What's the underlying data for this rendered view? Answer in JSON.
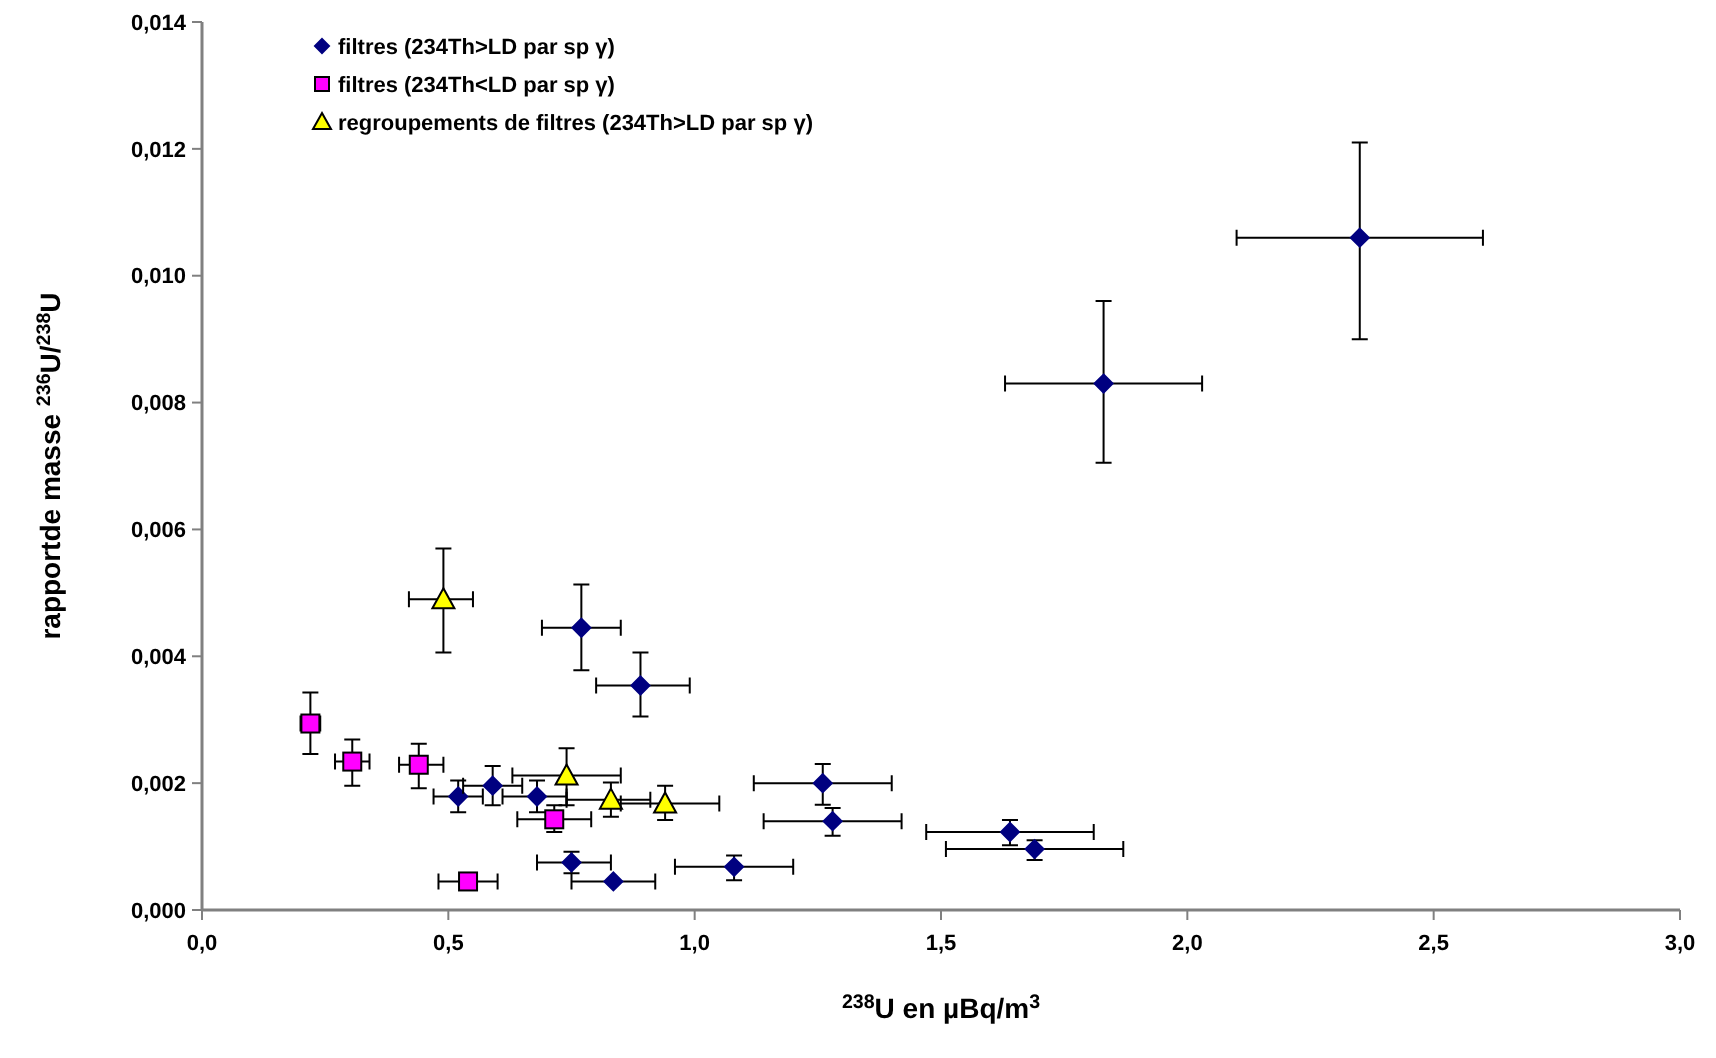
{
  "chart_data": {
    "type": "scatter",
    "xlabel": "$^{238}$U en µBq/m$^{3}$",
    "ylabel": "rapportde masse $^{236}$U/$^{238}$U",
    "xlim": [
      0,
      3
    ],
    "xticks": [
      {
        "value": 0,
        "label": "0,0"
      },
      {
        "value": 0.5,
        "label": "0,5"
      },
      {
        "value": 1,
        "label": "1,0"
      },
      {
        "value": 1.5,
        "label": "1,5"
      },
      {
        "value": 2,
        "label": "2,0"
      },
      {
        "value": 2.5,
        "label": "2,5"
      },
      {
        "value": 3,
        "label": "3,0"
      }
    ],
    "ylim": [
      0,
      0.014
    ],
    "yticks": [
      {
        "value": 0,
        "label": "0,000"
      },
      {
        "value": 0.002,
        "label": "0,002"
      },
      {
        "value": 0.004,
        "label": "0,004"
      },
      {
        "value": 0.006,
        "label": "0,006"
      },
      {
        "value": 0.008,
        "label": "0,008"
      },
      {
        "value": 0.01,
        "label": "0,010"
      },
      {
        "value": 0.012,
        "label": "0,012"
      },
      {
        "value": 0.014,
        "label": "0,014"
      }
    ],
    "grid": false,
    "legend": "top left",
    "series": [
      {
        "name": "filtres (234Th>LD par sp γ)",
        "color": "#000080",
        "marker": "diamond",
        "x": [
          2.35,
          1.83,
          0.77,
          0.89,
          1.26,
          1.28,
          1.64,
          1.69,
          0.52,
          0.59,
          0.68,
          0.75,
          0.835,
          1.08
        ],
        "values": [
          0.0106,
          0.0083,
          0.00445,
          0.00354,
          0.002,
          0.0014,
          0.00123,
          0.00096,
          0.00179,
          0.00196,
          0.00179,
          0.00075,
          0.00045,
          0.00068
        ],
        "errors": [
          [
            0.009,
            0.0121
          ],
          [
            0.00705,
            0.0096
          ],
          [
            0.00378,
            0.00513
          ],
          [
            0.00305,
            0.00406
          ],
          [
            0.00166,
            0.0023
          ],
          [
            0.00117,
            0.00161
          ],
          [
            0.00102,
            0.00142
          ],
          [
            0.00079,
            0.0011
          ],
          [
            0.00154,
            0.00204
          ],
          [
            0.00165,
            0.00227
          ],
          [
            0.00154,
            0.00204
          ],
          [
            0.00058,
            0.00092
          ],
          null,
          [
            0.00047,
            0.00086
          ]
        ],
        "xerrors": [
          [
            2.1,
            2.6
          ],
          [
            1.63,
            2.03
          ],
          [
            0.69,
            0.85
          ],
          [
            0.8,
            0.99
          ],
          [
            1.12,
            1.4
          ],
          [
            1.14,
            1.42
          ],
          [
            1.47,
            1.81
          ],
          [
            1.51,
            1.87
          ],
          [
            0.47,
            0.57
          ],
          [
            0.53,
            0.65
          ],
          [
            0.61,
            0.74
          ],
          [
            0.68,
            0.83
          ],
          [
            0.75,
            0.92
          ],
          [
            0.96,
            1.2
          ]
        ]
      },
      {
        "name": "filtres (234Th<LD par sp γ)",
        "color": "#ff00ff",
        "marker": "square",
        "x": [
          0.22,
          0.305,
          0.44,
          0.715,
          0.54
        ],
        "values": [
          0.00294,
          0.00234,
          0.00229,
          0.00143,
          0.00045
        ],
        "errors": [
          [
            0.00246,
            0.00343
          ],
          [
            0.00196,
            0.00269
          ],
          [
            0.00192,
            0.00262
          ],
          [
            0.00123,
            0.00165
          ],
          null
        ],
        "xerrors": [
          [
            0.2,
            0.24
          ],
          [
            0.27,
            0.34
          ],
          [
            0.4,
            0.49
          ],
          [
            0.64,
            0.79
          ],
          [
            0.48,
            0.6
          ]
        ]
      },
      {
        "name": "regroupements de filtres (234Th>LD par sp γ)",
        "color": "#ffff00",
        "marker": "triangle",
        "x": [
          0.49,
          0.74,
          0.83,
          0.94
        ],
        "values": [
          0.0049,
          0.00212,
          0.00174,
          0.00168
        ],
        "errors": [
          [
            0.00406,
            0.0057
          ],
          [
            0.00165,
            0.00255
          ],
          [
            0.00147,
            0.00201
          ],
          [
            0.00142,
            0.00196
          ]
        ],
        "xerrors": [
          [
            0.42,
            0.55
          ],
          [
            0.63,
            0.85
          ],
          [
            0.74,
            0.91
          ],
          [
            0.85,
            1.05
          ]
        ]
      }
    ]
  }
}
